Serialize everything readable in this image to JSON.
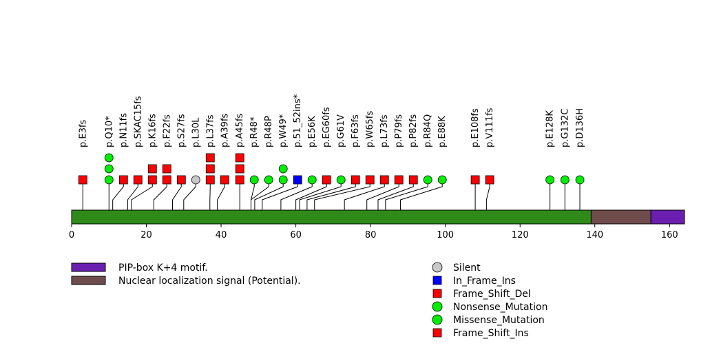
{
  "chart_data": {
    "type": "lollipop",
    "protein_length": 164,
    "axis": {
      "xlim": [
        0,
        164
      ],
      "ticks": [
        0,
        20,
        40,
        60,
        80,
        100,
        120,
        140,
        160
      ],
      "tick_labels": [
        "0",
        "20",
        "40",
        "60",
        "80",
        "100",
        "120",
        "140",
        "160"
      ]
    },
    "domains": [
      {
        "name": "Nuclear localization signal (Potential).",
        "start": 139,
        "end": 155,
        "color": "#6f4c4c"
      },
      {
        "name": "PIP-box K+4 motif.",
        "start": 155,
        "end": 164,
        "color": "#6a1fb0"
      }
    ],
    "backbone_color": "#2f8a1a",
    "mutations": [
      {
        "label": "p.E3fs",
        "pos": 3,
        "types": [
          "Frame_Shift_Del"
        ]
      },
      {
        "label": "p.Q10*",
        "pos": 10,
        "types": [
          "Nonsense_Mutation",
          "Nonsense_Mutation",
          "Nonsense_Mutation"
        ]
      },
      {
        "label": "p.N11fs",
        "pos": 11,
        "types": [
          "Frame_Shift_Del"
        ]
      },
      {
        "label": "p.SKAC15fs",
        "pos": 15,
        "types": [
          "Frame_Shift_Del"
        ]
      },
      {
        "label": "p.K16fs",
        "pos": 16,
        "types": [
          "Frame_Shift_Del",
          "Frame_Shift_Del"
        ]
      },
      {
        "label": "p.F22fs",
        "pos": 22,
        "types": [
          "Frame_Shift_Del",
          "Frame_Shift_Del"
        ]
      },
      {
        "label": "p.S27fs",
        "pos": 27,
        "types": [
          "Frame_Shift_Del"
        ]
      },
      {
        "label": "p.L30L",
        "pos": 30,
        "types": [
          "Silent"
        ]
      },
      {
        "label": "p.L37fs",
        "pos": 37,
        "types": [
          "Frame_Shift_Del",
          "Frame_Shift_Del",
          "Frame_Shift_Del"
        ]
      },
      {
        "label": "p.A39fs",
        "pos": 39,
        "types": [
          "Frame_Shift_Del"
        ]
      },
      {
        "label": "p.A45fs",
        "pos": 45,
        "types": [
          "Frame_Shift_Del",
          "Frame_Shift_Del",
          "Frame_Shift_Del"
        ]
      },
      {
        "label": "p.R48*",
        "pos": 48,
        "types": [
          "Nonsense_Mutation"
        ]
      },
      {
        "label": "p.R48P",
        "pos": 48,
        "types": [
          "Missense_Mutation"
        ]
      },
      {
        "label": "p.W49*",
        "pos": 49,
        "types": [
          "Nonsense_Mutation",
          "Nonsense_Mutation"
        ]
      },
      {
        "label": "p.51_52ins*",
        "pos": 51,
        "types": [
          "In_Frame_Ins"
        ]
      },
      {
        "label": "p.E56K",
        "pos": 56,
        "types": [
          "Missense_Mutation"
        ]
      },
      {
        "label": "p.EG60fs",
        "pos": 60,
        "types": [
          "Frame_Shift_Del"
        ]
      },
      {
        "label": "p.G61V",
        "pos": 61,
        "types": [
          "Missense_Mutation"
        ]
      },
      {
        "label": "p.F63fs",
        "pos": 63,
        "types": [
          "Frame_Shift_Del"
        ]
      },
      {
        "label": "p.W65fs",
        "pos": 65,
        "types": [
          "Frame_Shift_Del"
        ]
      },
      {
        "label": "p.L73fs",
        "pos": 73,
        "types": [
          "Frame_Shift_Del"
        ]
      },
      {
        "label": "p.P79fs",
        "pos": 79,
        "types": [
          "Frame_Shift_Del"
        ]
      },
      {
        "label": "p.P82fs",
        "pos": 82,
        "types": [
          "Frame_Shift_Del"
        ]
      },
      {
        "label": "p.R84Q",
        "pos": 84,
        "types": [
          "Missense_Mutation"
        ]
      },
      {
        "label": "p.E88K",
        "pos": 88,
        "types": [
          "Missense_Mutation"
        ]
      },
      {
        "label": "p.E108fs",
        "pos": 108,
        "types": [
          "Frame_Shift_Del"
        ]
      },
      {
        "label": "p.V111fs",
        "pos": 111,
        "types": [
          "Frame_Shift_Del"
        ]
      },
      {
        "label": "p.E128K",
        "pos": 128,
        "types": [
          "Missense_Mutation"
        ]
      },
      {
        "label": "p.G132C",
        "pos": 132,
        "types": [
          "Missense_Mutation"
        ]
      },
      {
        "label": "p.D136H",
        "pos": 136,
        "types": [
          "Missense_Mutation"
        ]
      }
    ],
    "legend_domains": [
      {
        "label": "PIP-box K+4 motif.",
        "color": "#6a1fb0"
      },
      {
        "label": "Nuclear localization signal (Potential).",
        "color": "#6f4c4c"
      }
    ],
    "legend_types": [
      {
        "label": "Silent",
        "shape": "circle",
        "color": "#c8c8c8"
      },
      {
        "label": "In_Frame_Ins",
        "shape": "square",
        "color": "#0000ff"
      },
      {
        "label": "Frame_Shift_Del",
        "shape": "square",
        "color": "#ff0000"
      },
      {
        "label": "Nonsense_Mutation",
        "shape": "circle",
        "color": "#00ee00"
      },
      {
        "label": "Missense_Mutation",
        "shape": "circle",
        "color": "#00ee00"
      },
      {
        "label": "Frame_Shift_Ins",
        "shape": "square",
        "color": "#ff0000"
      }
    ]
  }
}
